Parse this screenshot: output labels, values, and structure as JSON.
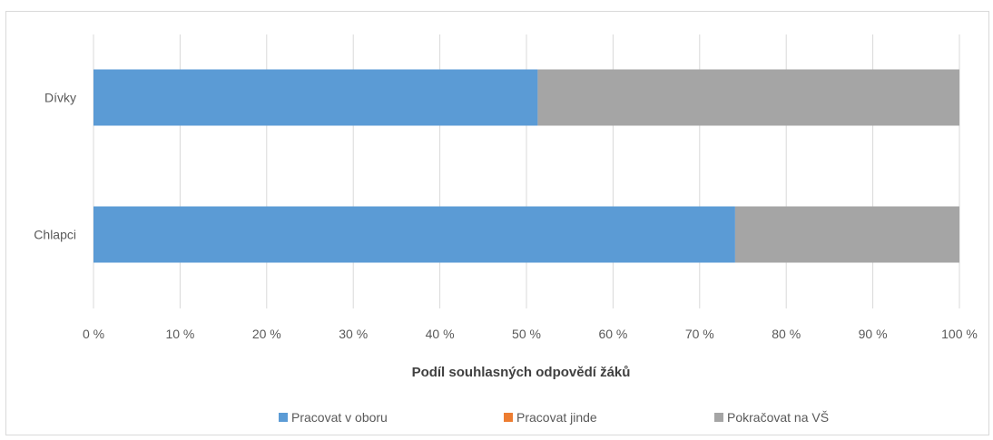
{
  "chart_data": {
    "type": "bar",
    "orientation": "horizontal",
    "stacked": "percent",
    "categories": [
      "Dívky",
      "Chlapci"
    ],
    "series": [
      {
        "name": "Pracovat v oboru",
        "values": [
          51.3,
          74.1
        ],
        "color": "#5b9bd5"
      },
      {
        "name": "Pracovat jinde",
        "values": [
          0,
          0
        ],
        "color": "#ed7d31"
      },
      {
        "name": "Pokračovat na VŠ",
        "values": [
          48.7,
          25.9
        ],
        "color": "#a5a5a5"
      }
    ],
    "x_ticks": [
      "0 %",
      "10 %",
      "20 %",
      "30 %",
      "40 %",
      "50 %",
      "60 %",
      "70 %",
      "80 %",
      "90 %",
      "100 %"
    ],
    "xlim": [
      0,
      100
    ],
    "xlabel": "Podíl souhlasných odpovědí žáků",
    "ylabel": "",
    "title": "",
    "grid": true,
    "legend_position": "bottom",
    "gridline_color": "#d9d9d9"
  }
}
